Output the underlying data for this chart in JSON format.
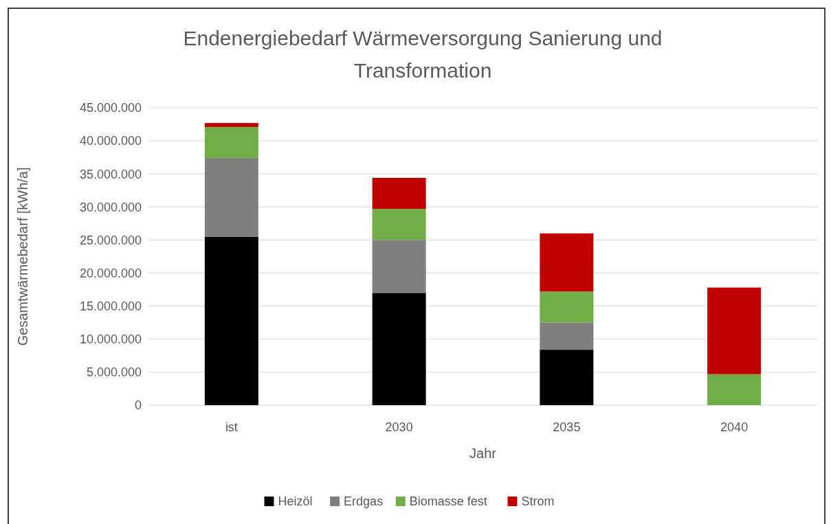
{
  "chart_data": {
    "type": "bar",
    "stacked": true,
    "title": "Endenergiebedarf Wärmeversorgung Sanierung und Transformation",
    "xlabel": "Jahr",
    "ylabel": "Gesamtwärmebedarf [kWh/a]",
    "categories": [
      "ist",
      "2030",
      "2035",
      "2040"
    ],
    "series": [
      {
        "name": "Heizöl",
        "color": "#000000",
        "values": [
          25500000,
          17000000,
          8400000,
          0
        ]
      },
      {
        "name": "Erdgas",
        "color": "#7f7f7f",
        "values": [
          11900000,
          8000000,
          4100000,
          0
        ]
      },
      {
        "name": "Biomasse fest",
        "color": "#70ad47",
        "values": [
          4700000,
          4700000,
          4700000,
          4700000
        ]
      },
      {
        "name": "Strom",
        "color": "#c00000",
        "values": [
          600000,
          4700000,
          8800000,
          13100000
        ]
      }
    ],
    "ylim": [
      0,
      45000000
    ],
    "yticks": [
      0,
      {
        "value": 5000000,
        "label": "5.000.000"
      },
      {
        "value": 10000000,
        "label": "10.000.000"
      },
      {
        "value": 15000000,
        "label": "15.000.000"
      },
      {
        "value": 20000000,
        "label": "20.000.000"
      },
      {
        "value": 25000000,
        "label": "25.000.000"
      },
      {
        "value": 30000000,
        "label": "30.000.000"
      },
      {
        "value": 35000000,
        "label": "35.000.000"
      },
      {
        "value": 40000000,
        "label": "40.000.000"
      },
      {
        "value": 45000000,
        "label": "45.000.000"
      }
    ],
    "grid": "y",
    "legend": "bottom"
  }
}
